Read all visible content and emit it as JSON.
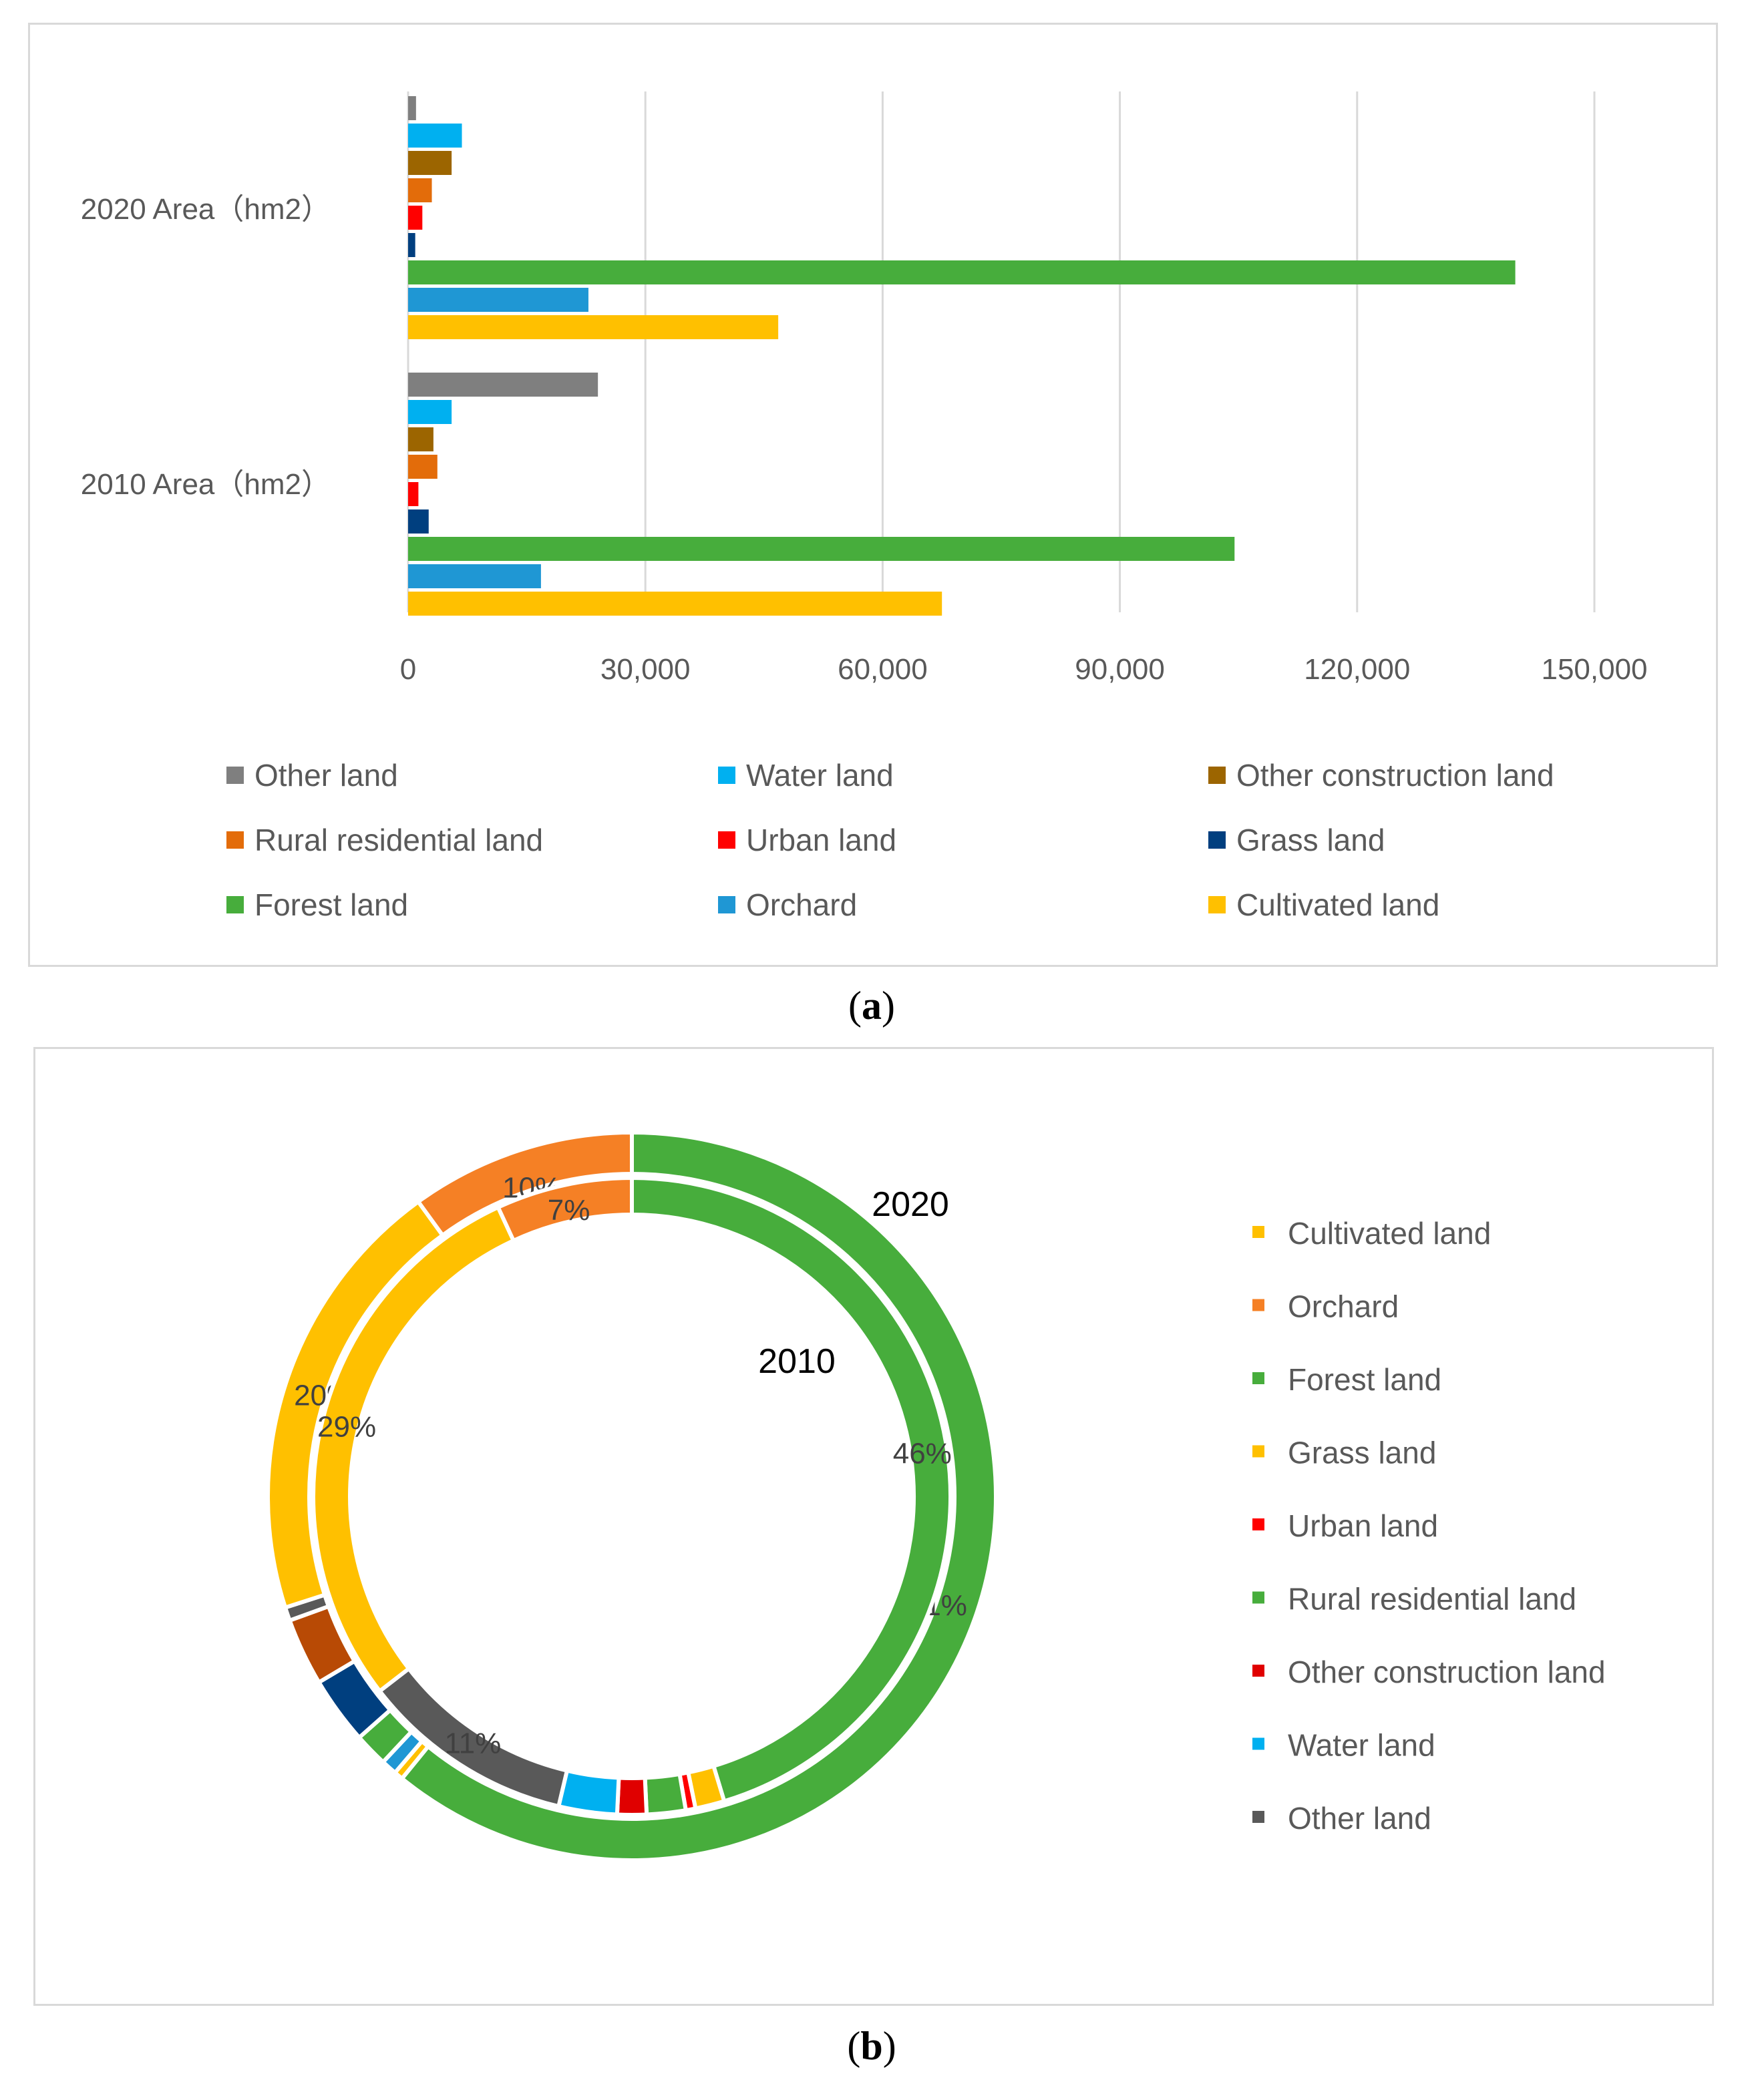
{
  "figure_labels": {
    "a": "a",
    "b": "b"
  },
  "colors": {
    "other_land": "#7f7f7f",
    "water_land": "#00b0f0",
    "other_construction_land": "#9c6500",
    "rural_residential_land": "#e36c0a",
    "urban_land": "#ff0000",
    "grass_land": "#003f7f",
    "forest_land": "#47ad3c",
    "orchard": "#1f97d4",
    "cultivated_land": "#ffc000",
    "gridline": "#d9d9d9",
    "tick_text": "#595959"
  },
  "chart_data": [
    {
      "type": "bar",
      "orientation": "horizontal",
      "categories": [
        "2020 Area（hm2）",
        "2010 Area（hm2）"
      ],
      "series": [
        {
          "name": "Other land",
          "color": "#7f7f7f",
          "values": [
            1000,
            24000
          ]
        },
        {
          "name": "Water land",
          "color": "#00b0f0",
          "values": [
            6800,
            5500
          ]
        },
        {
          "name": "Other construction land",
          "color": "#9c6500",
          "values": [
            5500,
            3200
          ]
        },
        {
          "name": "Rural residential land",
          "color": "#e36c0a",
          "values": [
            3000,
            3700
          ]
        },
        {
          "name": "Urban land",
          "color": "#ff0000",
          "values": [
            1800,
            1300
          ]
        },
        {
          "name": "Grass land",
          "color": "#003f7f",
          "values": [
            900,
            2600
          ]
        },
        {
          "name": "Forest land",
          "color": "#47ad3c",
          "values": [
            140000,
            104500
          ]
        },
        {
          "name": "Orchard",
          "color": "#1f97d4",
          "values": [
            22800,
            16800
          ]
        },
        {
          "name": "Cultivated land",
          "color": "#ffc000",
          "values": [
            46800,
            67500
          ]
        }
      ],
      "xlim": [
        0,
        150000
      ],
      "xticks": [
        "0",
        "30,000",
        "60,000",
        "90,000",
        "120,000",
        "150,000"
      ],
      "xtick_values": [
        0,
        30000,
        60000,
        90000,
        120000,
        150000
      ],
      "grid": true,
      "legend_position": "bottom",
      "legend_entries": [
        "Other land",
        "Water land",
        "Other construction land",
        "Rural residential land",
        "Urban land",
        "Grass land",
        "Forest land",
        "Orchard",
        "Cultivated land"
      ]
    },
    {
      "type": "pie",
      "variant": "doughnut",
      "ring_labels": {
        "outer": "2020",
        "inner": "2010"
      },
      "rings": {
        "outer": {
          "name": "2020",
          "slices": [
            {
              "label": "Forest land",
              "value": 61,
              "color": "#47ad3c",
              "show": "61%"
            },
            {
              "label": "Cultivated land",
              "value": 0.4,
              "color": "#ffc000",
              "show": ""
            },
            {
              "label": "Orchard",
              "value": 0.7,
              "color": "#1f97d4",
              "show": ""
            },
            {
              "label": "Forest land",
              "value": 1.5,
              "color": "#47ad3c",
              "show": ""
            },
            {
              "label": "Grass land",
              "value": 3.0,
              "color": "#003f7f",
              "show": ""
            },
            {
              "label": "Rural residential land",
              "value": 3.0,
              "color": "#b84a05",
              "show": ""
            },
            {
              "label": "Other land",
              "value": 0.6,
              "color": "#595959",
              "show": ""
            },
            {
              "label": "Cultivated land",
              "value": 20,
              "color": "#ffc000",
              "show": "20%"
            },
            {
              "label": "Orchard",
              "value": 10,
              "color": "#f58025",
              "show": "10%"
            }
          ]
        },
        "inner": {
          "name": "2010",
          "slices": [
            {
              "label": "Forest land",
              "value": 46,
              "color": "#47ad3c",
              "show": "46%"
            },
            {
              "label": "Cultivated land",
              "value": 1.5,
              "color": "#ffc000",
              "show": ""
            },
            {
              "label": "Urban land",
              "value": 0.5,
              "color": "#ff0000",
              "show": ""
            },
            {
              "label": "Rural residential land",
              "value": 2.0,
              "color": "#47ad3c",
              "show": ""
            },
            {
              "label": "Other construction land",
              "value": 1.5,
              "color": "#e00000",
              "show": ""
            },
            {
              "label": "Water land",
              "value": 3.0,
              "color": "#00b0f0",
              "show": ""
            },
            {
              "label": "Other land",
              "value": 11,
              "color": "#595959",
              "show": "11%"
            },
            {
              "label": "Grass land",
              "value": 29,
              "color": "#ffc000",
              "show": "29%"
            },
            {
              "label": "Orchard",
              "value": 7,
              "color": "#f58025",
              "show": "7%"
            }
          ]
        }
      },
      "legend_position": "right",
      "legend": [
        {
          "label": "Cultivated land",
          "color": "#ffc000"
        },
        {
          "label": "Orchard",
          "color": "#f58025"
        },
        {
          "label": "Forest land",
          "color": "#47ad3c"
        },
        {
          "label": "Grass land",
          "color": "#ffc000"
        },
        {
          "label": "Urban land",
          "color": "#ff0000"
        },
        {
          "label": "Rural residential land",
          "color": "#47ad3c"
        },
        {
          "label": "Other construction land",
          "color": "#e00000"
        },
        {
          "label": "Water land",
          "color": "#00b0f0"
        },
        {
          "label": "Other land",
          "color": "#595959"
        }
      ]
    }
  ]
}
